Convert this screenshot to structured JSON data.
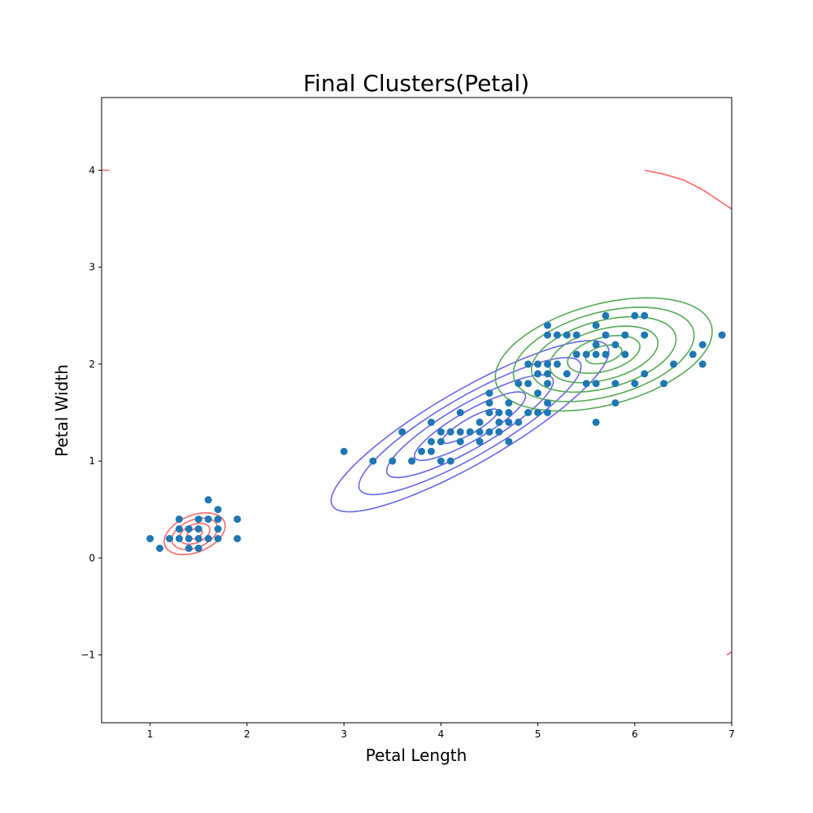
{
  "chart_data": {
    "type": "scatter",
    "title": "Final Clusters(Petal)",
    "xlabel": "Petal Length",
    "ylabel": "Petal Width",
    "xlim": [
      0.5,
      7.0
    ],
    "ylim": [
      -1.7,
      4.75
    ],
    "xticks": [
      1,
      2,
      3,
      4,
      5,
      6,
      7
    ],
    "yticks": [
      -1,
      0,
      1,
      2,
      3,
      4
    ],
    "xtick_labels": [
      "1",
      "2",
      "3",
      "4",
      "5",
      "6",
      "7"
    ],
    "ytick_labels": [
      "−1",
      "0",
      "1",
      "2",
      "3",
      "4"
    ],
    "grid": false,
    "point_color": "#1f77b4",
    "points": [
      [
        1.0,
        0.2
      ],
      [
        1.1,
        0.1
      ],
      [
        1.2,
        0.2
      ],
      [
        1.3,
        0.2
      ],
      [
        1.3,
        0.3
      ],
      [
        1.3,
        0.4
      ],
      [
        1.4,
        0.1
      ],
      [
        1.4,
        0.2
      ],
      [
        1.4,
        0.3
      ],
      [
        1.5,
        0.1
      ],
      [
        1.5,
        0.2
      ],
      [
        1.5,
        0.3
      ],
      [
        1.5,
        0.4
      ],
      [
        1.6,
        0.2
      ],
      [
        1.6,
        0.4
      ],
      [
        1.6,
        0.6
      ],
      [
        1.7,
        0.2
      ],
      [
        1.7,
        0.3
      ],
      [
        1.7,
        0.4
      ],
      [
        1.7,
        0.5
      ],
      [
        1.9,
        0.2
      ],
      [
        1.9,
        0.4
      ],
      [
        3.0,
        1.1
      ],
      [
        3.3,
        1.0
      ],
      [
        3.5,
        1.0
      ],
      [
        3.6,
        1.3
      ],
      [
        3.7,
        1.0
      ],
      [
        3.8,
        1.1
      ],
      [
        3.9,
        1.1
      ],
      [
        3.9,
        1.2
      ],
      [
        3.9,
        1.4
      ],
      [
        4.0,
        1.0
      ],
      [
        4.0,
        1.2
      ],
      [
        4.0,
        1.3
      ],
      [
        4.1,
        1.0
      ],
      [
        4.1,
        1.3
      ],
      [
        4.2,
        1.2
      ],
      [
        4.2,
        1.3
      ],
      [
        4.2,
        1.5
      ],
      [
        4.3,
        1.3
      ],
      [
        4.4,
        1.2
      ],
      [
        4.4,
        1.3
      ],
      [
        4.4,
        1.4
      ],
      [
        4.5,
        1.3
      ],
      [
        4.5,
        1.5
      ],
      [
        4.5,
        1.6
      ],
      [
        4.5,
        1.7
      ],
      [
        4.6,
        1.3
      ],
      [
        4.6,
        1.4
      ],
      [
        4.6,
        1.5
      ],
      [
        4.7,
        1.2
      ],
      [
        4.7,
        1.4
      ],
      [
        4.7,
        1.5
      ],
      [
        4.7,
        1.6
      ],
      [
        4.8,
        1.4
      ],
      [
        4.8,
        1.8
      ],
      [
        4.9,
        1.5
      ],
      [
        4.9,
        1.8
      ],
      [
        4.9,
        2.0
      ],
      [
        5.0,
        1.5
      ],
      [
        5.0,
        1.7
      ],
      [
        5.0,
        1.9
      ],
      [
        5.0,
        2.0
      ],
      [
        5.1,
        1.5
      ],
      [
        5.1,
        1.6
      ],
      [
        5.1,
        1.8
      ],
      [
        5.1,
        1.9
      ],
      [
        5.1,
        2.0
      ],
      [
        5.1,
        2.3
      ],
      [
        5.1,
        2.4
      ],
      [
        5.2,
        2.0
      ],
      [
        5.2,
        2.3
      ],
      [
        5.3,
        1.9
      ],
      [
        5.3,
        2.3
      ],
      [
        5.4,
        2.1
      ],
      [
        5.4,
        2.3
      ],
      [
        5.5,
        1.8
      ],
      [
        5.5,
        2.1
      ],
      [
        5.6,
        1.4
      ],
      [
        5.6,
        1.8
      ],
      [
        5.6,
        2.1
      ],
      [
        5.6,
        2.2
      ],
      [
        5.6,
        2.4
      ],
      [
        5.7,
        2.1
      ],
      [
        5.7,
        2.3
      ],
      [
        5.7,
        2.5
      ],
      [
        5.8,
        1.6
      ],
      [
        5.8,
        1.8
      ],
      [
        5.8,
        2.2
      ],
      [
        5.9,
        2.1
      ],
      [
        5.9,
        2.3
      ],
      [
        6.0,
        1.8
      ],
      [
        6.0,
        2.5
      ],
      [
        6.1,
        1.9
      ],
      [
        6.1,
        2.3
      ],
      [
        6.1,
        2.5
      ],
      [
        6.3,
        1.8
      ],
      [
        6.4,
        2.0
      ],
      [
        6.6,
        2.1
      ],
      [
        6.7,
        2.0
      ],
      [
        6.7,
        2.2
      ],
      [
        6.9,
        2.3
      ]
    ],
    "clusters": [
      {
        "color": "#ff6666",
        "center": [
          1.46,
          0.25
        ],
        "semi_axes": [
          0.33,
          0.19
        ],
        "angle_deg": 22,
        "levels": 4
      },
      {
        "color": "#6666ee",
        "center": [
          4.3,
          1.36
        ],
        "semi_axes": [
          1.64,
          0.38
        ],
        "angle_deg": 30,
        "levels": 5
      },
      {
        "color": "#55aa55",
        "center": [
          5.68,
          2.1
        ],
        "semi_axes": [
          1.15,
          0.52
        ],
        "angle_deg": 15,
        "levels": 6
      }
    ],
    "stray_contours": [
      {
        "color": "#ff6666",
        "points": [
          [
            0.5,
            4.0
          ],
          [
            0.58,
            4.0
          ]
        ]
      },
      {
        "color": "#ff6666",
        "points": [
          [
            6.1,
            4.0
          ],
          [
            6.3,
            3.96
          ],
          [
            6.5,
            3.9
          ],
          [
            6.7,
            3.8
          ],
          [
            6.85,
            3.7
          ],
          [
            7.0,
            3.6
          ]
        ]
      },
      {
        "color": "#ff6666",
        "points": [
          [
            6.95,
            -1.0
          ],
          [
            7.0,
            -0.97
          ]
        ]
      }
    ]
  }
}
